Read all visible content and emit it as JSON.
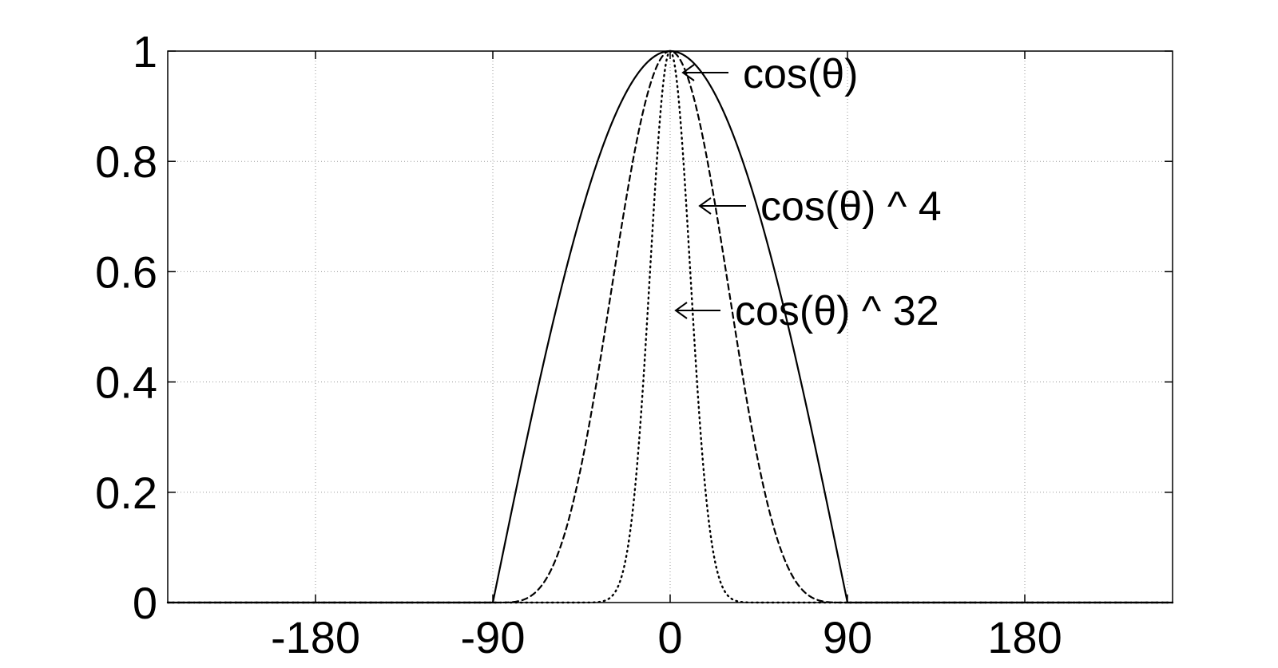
{
  "chart_data": {
    "type": "line",
    "title": "",
    "xlabel": "",
    "ylabel": "",
    "xlim": [
      -255,
      255
    ],
    "ylim": [
      0,
      1
    ],
    "xticks": [
      -180,
      -90,
      0,
      90,
      180
    ],
    "xtick_labels": [
      "-180",
      "-90",
      "0",
      "90",
      "180"
    ],
    "yticks": [
      0,
      0.2,
      0.4,
      0.6,
      0.8,
      1
    ],
    "ytick_labels": [
      "0",
      "0.2",
      "0.4",
      "0.6",
      "0.8",
      "1"
    ],
    "grid": true,
    "legend": "none",
    "series": [
      {
        "label": "cos(θ)",
        "exponent": 1,
        "style": "solid",
        "color": "#000000",
        "x": [
          -255,
          -180,
          -90,
          -75,
          -60,
          -45,
          -30,
          -15,
          0,
          15,
          30,
          45,
          60,
          75,
          90,
          180,
          255
        ],
        "y": [
          0,
          0,
          0,
          0.259,
          0.5,
          0.707,
          0.866,
          0.966,
          1,
          0.966,
          0.866,
          0.707,
          0.5,
          0.259,
          0,
          0,
          0
        ]
      },
      {
        "label": "cos(θ) ^ 4",
        "exponent": 4,
        "style": "dashed",
        "color": "#000000",
        "x": [
          -255,
          -180,
          -90,
          -75,
          -60,
          -45,
          -30,
          -15,
          0,
          15,
          30,
          45,
          60,
          75,
          90,
          180,
          255
        ],
        "y": [
          0,
          0,
          0,
          0.004,
          0.063,
          0.25,
          0.563,
          0.871,
          1,
          0.871,
          0.563,
          0.25,
          0.063,
          0.004,
          0,
          0,
          0
        ]
      },
      {
        "label": "cos(θ) ^ 32",
        "exponent": 32,
        "style": "dotted",
        "color": "#000000",
        "x": [
          -255,
          -180,
          -90,
          -45,
          -30,
          -20,
          -15,
          -10,
          -5,
          0,
          5,
          10,
          15,
          20,
          30,
          45,
          90,
          180,
          255
        ],
        "y": [
          0,
          0,
          0,
          0,
          0.01,
          0.137,
          0.33,
          0.614,
          0.886,
          1,
          0.886,
          0.614,
          0.33,
          0.137,
          0.01,
          0,
          0,
          0,
          0
        ]
      }
    ],
    "annotations": [
      {
        "text": "cos(θ)",
        "points_to_series": 0,
        "at_y": 0.95
      },
      {
        "text": "cos(θ) ^ 4",
        "points_to_series": 1,
        "at_y": 0.7
      },
      {
        "text": "cos(θ) ^ 32",
        "points_to_series": 2,
        "at_y": 0.51
      }
    ]
  }
}
